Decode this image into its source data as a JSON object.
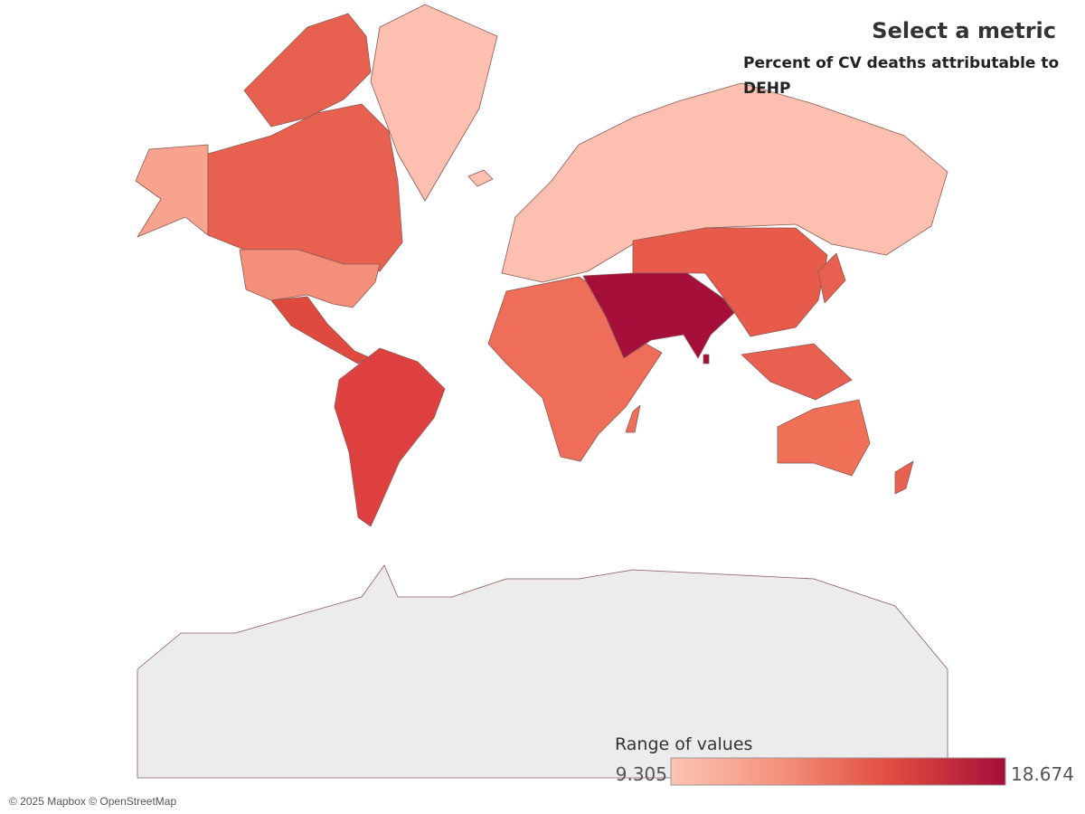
{
  "header": {
    "title": "Select a metric",
    "metric": "Percent of CV deaths attributable to DEHP"
  },
  "legend": {
    "title": "Range of values",
    "min": 9.305,
    "max": 18.674,
    "colors": [
      "#fdc4b5",
      "#f4907a",
      "#e04a3e",
      "#a50f3a"
    ]
  },
  "attribution": "© 2025 Mapbox © OpenStreetMap"
}
